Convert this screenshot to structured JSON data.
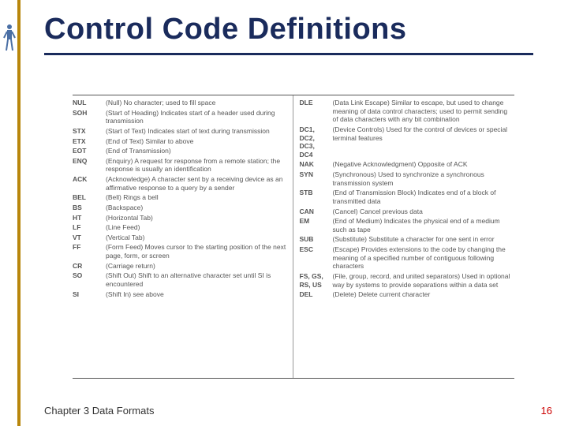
{
  "title": "Control Code Definitions",
  "colors": {
    "title": "#1a2b5c",
    "rule": "#1a2b5c",
    "vbar": "#b8860b",
    "text": "#555555",
    "page_num": "#cc0000",
    "background": "#ffffff"
  },
  "typography": {
    "title_fontsize": 38,
    "title_weight": "bold",
    "body_fontsize": 8.5,
    "footer_fontsize": 13,
    "font_family": "Arial"
  },
  "left_column": [
    {
      "code": "NUL",
      "desc": "(Null) No character; used to fill space"
    },
    {
      "code": "SOH",
      "desc": "(Start of Heading) Indicates start of a header used during transmission"
    },
    {
      "code": "STX",
      "desc": "(Start of Text) Indicates start of text during transmission"
    },
    {
      "code": "ETX",
      "desc": "(End of Text) Similar to above"
    },
    {
      "code": "EOT",
      "desc": "(End of Transmission)"
    },
    {
      "code": "ENQ",
      "desc": "(Enquiry) A request for response from a remote station; the response is usually an identification"
    },
    {
      "code": "ACK",
      "desc": "(Acknowledge) A character sent by a receiving device as an affirmative response to a query by a sender"
    },
    {
      "code": "BEL",
      "desc": "(Bell) Rings a bell"
    },
    {
      "code": "BS",
      "desc": "(Backspace)"
    },
    {
      "code": "HT",
      "desc": "(Horizontal Tab)"
    },
    {
      "code": "LF",
      "desc": "(Line Feed)"
    },
    {
      "code": "VT",
      "desc": "(Vertical Tab)"
    },
    {
      "code": "FF",
      "desc": "(Form Feed) Moves cursor to the starting position of the next page, form, or screen"
    },
    {
      "code": "CR",
      "desc": "(Carriage return)"
    },
    {
      "code": "SO",
      "desc": "(Shift Out) Shift to an alternative character set until SI is encountered"
    },
    {
      "code": "SI",
      "desc": "(Shift In) see above"
    }
  ],
  "right_column": [
    {
      "code": "DLE",
      "desc": "(Data Link Escape) Similar to escape, but used to change meaning of data control characters; used to permit sending of data characters with any bit combination"
    },
    {
      "code": "DC1, DC2, DC3, DC4",
      "desc": "(Device Controls) Used for the control of devices or special terminal features"
    },
    {
      "code": "NAK",
      "desc": "(Negative Acknowledgment) Opposite of ACK"
    },
    {
      "code": "SYN",
      "desc": "(Synchronous) Used to synchronize a synchronous transmission system"
    },
    {
      "code": "STB",
      "desc": "(End of Transmission Block) Indicates end of a block of transmitted data"
    },
    {
      "code": "CAN",
      "desc": "(Cancel) Cancel previous data"
    },
    {
      "code": "EM",
      "desc": "(End of Medium) Indicates the physical end of a medium such as tape"
    },
    {
      "code": "SUB",
      "desc": "(Substitute) Substitute a character for one sent in error"
    },
    {
      "code": "ESC",
      "desc": "(Escape) Provides extensions to the code by changing the meaning of a specified number of contiguous following characters"
    },
    {
      "code": "FS, GS, RS, US",
      "desc": "(File, group, record, and united separators) Used in optional way by systems to provide separations within a data set"
    },
    {
      "code": "DEL",
      "desc": "(Delete) Delete current character"
    }
  ],
  "footer": {
    "chapter": "Chapter 3 Data Formats",
    "page": "16"
  }
}
